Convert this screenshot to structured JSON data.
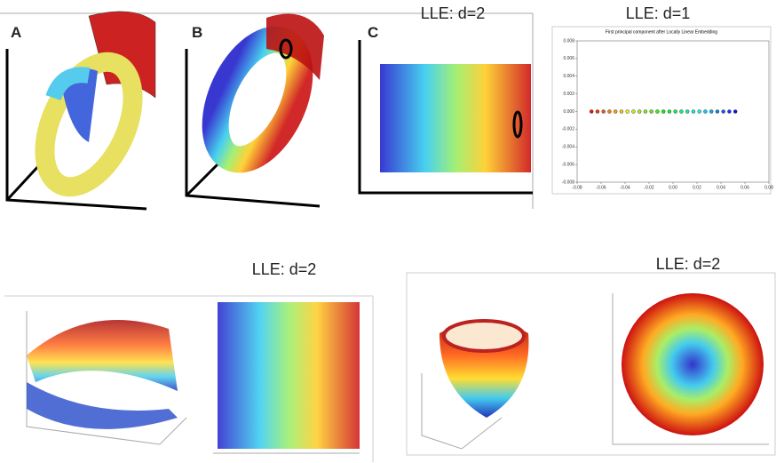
{
  "panels": {
    "top_left": {
      "title": "LLE: d=2",
      "labels": [
        "A",
        "B",
        "C"
      ]
    },
    "top_right": {
      "title": "LLE: d=1"
    },
    "bottom_left": {
      "title": "LLE: d=2"
    },
    "bottom_right": {
      "title": "LLE: d=2"
    }
  },
  "chart_data": {
    "type": "scatter",
    "title": "First principal component after Locally Linear Embedding",
    "x": [
      -0.068,
      -0.063,
      -0.058,
      -0.053,
      -0.048,
      -0.043,
      -0.038,
      -0.033,
      -0.028,
      -0.023,
      -0.018,
      -0.013,
      -0.008,
      -0.003,
      0.002,
      0.007,
      0.012,
      0.017,
      0.022,
      0.027,
      0.032,
      0.037,
      0.042,
      0.047,
      0.052
    ],
    "y": [
      0,
      0,
      0,
      0,
      0,
      0,
      0,
      0,
      0,
      0,
      0,
      0,
      0,
      0,
      0,
      0,
      0,
      0,
      0,
      0,
      0,
      0,
      0,
      0,
      0
    ],
    "xlim": [
      -0.08,
      0.08
    ],
    "ylim": [
      -0.008,
      0.008
    ],
    "xticks": [
      -0.08,
      -0.06,
      -0.04,
      -0.02,
      {
        "value": 0,
        "label": "0.00"
      },
      0.02,
      0.04,
      0.06,
      0.08
    ],
    "yticks": [
      -0.008,
      -0.006,
      -0.004,
      -0.002,
      {
        "value": 0,
        "label": "0.000"
      },
      0.002,
      0.004,
      0.006,
      0.008
    ]
  }
}
